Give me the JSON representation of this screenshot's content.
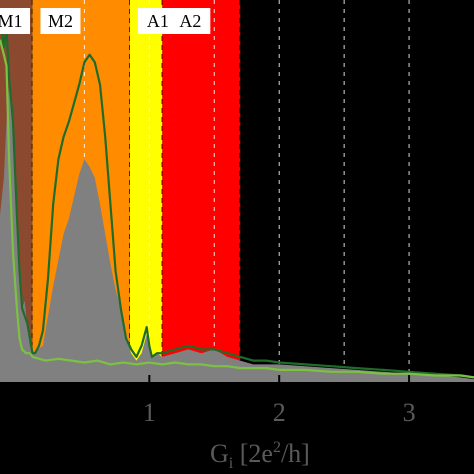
{
  "chart_data": {
    "type": "area",
    "title": "",
    "xlabel_main": "G",
    "xlabel_sub": "i",
    "xlabel_unit_pre": " [2e",
    "xlabel_unit_sup": "2",
    "xlabel_unit_post": "/h]",
    "xlim": [
      -0.15,
      3.5
    ],
    "ylim": [
      0,
      1.0
    ],
    "x_ticks": [
      {
        "value": 1,
        "label": "1"
      },
      {
        "value": 2,
        "label": "2"
      },
      {
        "value": 3,
        "label": "3"
      }
    ],
    "dashed_lines": [
      0.5,
      1.0,
      1.5,
      2.0,
      2.5,
      3.0
    ],
    "regions": [
      {
        "label": "M1",
        "x0": -0.15,
        "x1": 0.1,
        "color": "#8b4a30"
      },
      {
        "label": "M2",
        "x0": 0.1,
        "x1": 0.85,
        "color": "#ff8c00"
      },
      {
        "label": "A1",
        "x0": 0.85,
        "x1": 1.1,
        "color": "#ffff00"
      },
      {
        "label": "A2",
        "x0": 1.1,
        "x1": 1.7,
        "color": "#ff0000"
      }
    ],
    "series": [
      {
        "style": "area",
        "color": "#808080",
        "x": [
          -0.15,
          -0.12,
          -0.1,
          -0.08,
          -0.06,
          -0.04,
          -0.02,
          0.0,
          0.02,
          0.04,
          0.06,
          0.08,
          0.1,
          0.14,
          0.18,
          0.22,
          0.26,
          0.3,
          0.34,
          0.38,
          0.42,
          0.46,
          0.5,
          0.54,
          0.58,
          0.62,
          0.66,
          0.7,
          0.74,
          0.78,
          0.82,
          0.86,
          0.9,
          0.94,
          0.98,
          1.0,
          1.02,
          1.06,
          1.1,
          1.2,
          1.3,
          1.4,
          1.5,
          1.6,
          1.7,
          1.8,
          1.9,
          2.0,
          2.2,
          2.4,
          2.6,
          2.8,
          3.0,
          3.2,
          3.4,
          3.5
        ],
        "y": [
          0.45,
          0.55,
          0.7,
          0.8,
          0.72,
          0.6,
          0.45,
          0.3,
          0.2,
          0.22,
          0.15,
          0.1,
          0.08,
          0.09,
          0.1,
          0.18,
          0.26,
          0.33,
          0.4,
          0.44,
          0.5,
          0.56,
          0.6,
          0.58,
          0.55,
          0.48,
          0.4,
          0.32,
          0.25,
          0.2,
          0.12,
          0.08,
          0.06,
          0.08,
          0.13,
          0.09,
          0.07,
          0.08,
          0.07,
          0.08,
          0.09,
          0.08,
          0.09,
          0.07,
          0.06,
          0.05,
          0.05,
          0.05,
          0.045,
          0.04,
          0.035,
          0.03,
          0.025,
          0.02,
          0.015,
          0.01
        ]
      },
      {
        "style": "line",
        "color": "#1f6b2a",
        "x": [
          -0.15,
          -0.12,
          -0.1,
          -0.08,
          -0.05,
          -0.02,
          0.0,
          0.02,
          0.04,
          0.06,
          0.08,
          0.1,
          0.12,
          0.15,
          0.18,
          0.22,
          0.26,
          0.3,
          0.34,
          0.38,
          0.42,
          0.46,
          0.5,
          0.54,
          0.58,
          0.62,
          0.66,
          0.7,
          0.74,
          0.78,
          0.82,
          0.86,
          0.9,
          0.94,
          0.98,
          1.0,
          1.02,
          1.06,
          1.1,
          1.2,
          1.3,
          1.4,
          1.5,
          1.6,
          1.7,
          1.8,
          1.9,
          2.0,
          2.2,
          2.4,
          2.6,
          2.8,
          3.0,
          3.2,
          3.4,
          3.5
        ],
        "y": [
          1.0,
          0.9,
          0.95,
          0.82,
          0.7,
          0.45,
          0.3,
          0.2,
          0.18,
          0.16,
          0.12,
          0.08,
          0.08,
          0.1,
          0.14,
          0.28,
          0.48,
          0.6,
          0.66,
          0.7,
          0.75,
          0.8,
          0.86,
          0.88,
          0.86,
          0.8,
          0.66,
          0.48,
          0.3,
          0.2,
          0.12,
          0.09,
          0.07,
          0.1,
          0.15,
          0.1,
          0.07,
          0.08,
          0.08,
          0.09,
          0.1,
          0.09,
          0.09,
          0.08,
          0.07,
          0.06,
          0.06,
          0.055,
          0.05,
          0.045,
          0.04,
          0.035,
          0.03,
          0.025,
          0.02,
          0.015
        ]
      },
      {
        "style": "line",
        "color": "#7cc142",
        "x": [
          -0.15,
          -0.12,
          -0.1,
          -0.08,
          -0.05,
          -0.02,
          0.0,
          0.02,
          0.05,
          0.08,
          0.1,
          0.2,
          0.3,
          0.4,
          0.5,
          0.6,
          0.7,
          0.8,
          0.9,
          1.0,
          1.1,
          1.2,
          1.3,
          1.4,
          1.5,
          1.6,
          1.7,
          1.8,
          1.9,
          2.0,
          2.2,
          2.4,
          2.6,
          2.8,
          3.0,
          3.2,
          3.4,
          3.5
        ],
        "y": [
          0.92,
          0.88,
          0.85,
          0.6,
          0.35,
          0.2,
          0.12,
          0.09,
          0.08,
          0.08,
          0.07,
          0.06,
          0.065,
          0.06,
          0.055,
          0.06,
          0.05,
          0.055,
          0.05,
          0.055,
          0.05,
          0.055,
          0.05,
          0.05,
          0.045,
          0.045,
          0.04,
          0.04,
          0.04,
          0.035,
          0.035,
          0.03,
          0.03,
          0.025,
          0.025,
          0.02,
          0.02,
          0.015
        ]
      }
    ]
  }
}
